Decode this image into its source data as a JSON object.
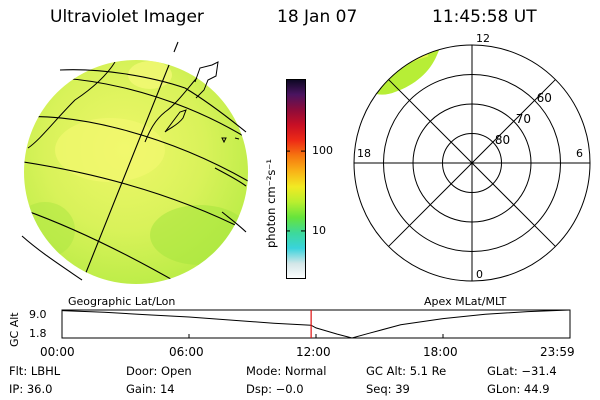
{
  "header": {
    "instrument": "Ultraviolet Imager",
    "date": "18 Jan 07",
    "time": "11:45:58 UT"
  },
  "colorbar": {
    "label": "photon cm⁻²s⁻¹",
    "ticks": [
      {
        "label": "100",
        "value": 100
      },
      {
        "label": "10",
        "value": 10
      }
    ],
    "scale": "log",
    "range": [
      2.5,
      800
    ],
    "colors": [
      "#ffffff",
      "#d4e6e8",
      "#39d3dc",
      "#3dd99a",
      "#66e43c",
      "#b9ef2f",
      "#f2ea23",
      "#f9b317",
      "#f6770f",
      "#ee2b16",
      "#c80f24",
      "#8d0c3a",
      "#4a1460",
      "#0a0720"
    ]
  },
  "geo_map": {
    "caption": "Geographic Lat/Lon",
    "fill_color": "#d8f25e"
  },
  "polar_plot": {
    "caption": "Apex MLat/MLT",
    "mlt_labels": [
      {
        "label": "12",
        "mlt": 12
      },
      {
        "label": "18",
        "mlt": 18
      },
      {
        "label": "6",
        "mlt": 6
      },
      {
        "label": "0",
        "mlt": 0
      }
    ],
    "mlat_labels": [
      {
        "label": "60",
        "mlat": 60
      },
      {
        "label": "70",
        "mlat": 70
      },
      {
        "label": "80",
        "mlat": 80
      }
    ],
    "rings_mlat": [
      50,
      60,
      70,
      80
    ],
    "aurora_color": "#b7ee36"
  },
  "altitude_track": {
    "ylabel": "GC Alt",
    "ymax_label": "9.0",
    "ymin_label": "1.8",
    "ylim": [
      1.8,
      9.0
    ],
    "x_ticks": [
      "00:00",
      "06:00",
      "12:00",
      "18:00",
      "23:59"
    ],
    "current_time_hours": 11.77,
    "marker_color": "#e01010",
    "chart_data": {
      "type": "line",
      "x_hours": [
        0,
        2,
        4,
        6,
        8,
        10,
        11.77,
        12,
        13,
        13.7,
        14.5,
        16,
        18,
        20,
        22,
        23.98
      ],
      "y_alt_re": [
        8.85,
        8.4,
        7.8,
        7.2,
        6.4,
        5.6,
        5.1,
        4.4,
        2.8,
        1.8,
        3.0,
        5.2,
        6.8,
        7.9,
        8.6,
        9.0
      ]
    }
  },
  "info": {
    "filter": "Flt: LBHL",
    "door": "Door: Open",
    "mode": "Mode: Normal",
    "gc_alt": "GC Alt: 5.1 Re",
    "glat": "GLat: −31.4",
    "ip": "IP: 36.0",
    "gain": "Gain: 14",
    "dsp": "Dsp:   −0.0",
    "seq": "Seq: 39",
    "glon": "GLon:  44.9"
  }
}
